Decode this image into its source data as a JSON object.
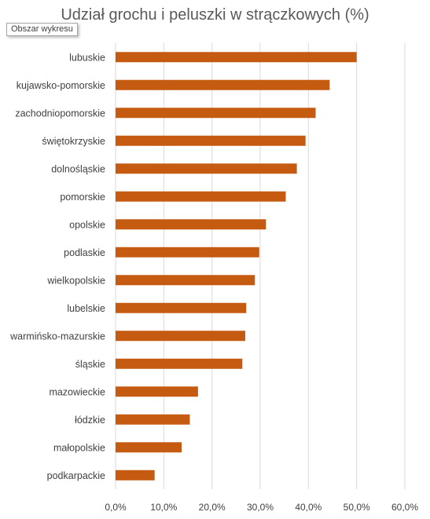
{
  "tooltip": "Obszar wykresu",
  "chart_data": {
    "type": "bar",
    "orientation": "horizontal",
    "title": "Udział grochu i peluszki w strączkowych (%)",
    "xlabel": "",
    "ylabel": "",
    "categories": [
      "lubuskie",
      "kujawsko-pomorskie",
      "zachodniopomorskie",
      "świętokrzyskie",
      "dolnośląskie",
      "pomorskie",
      "opolskie",
      "podlaskie",
      "wielkopolskie",
      "lubelskie",
      "warmińsko-mazurskie",
      "śląskie",
      "mazowieckie",
      "łódzkie",
      "małopolskie",
      "podkarpackie"
    ],
    "values": [
      50.0,
      44.4,
      41.5,
      39.4,
      37.6,
      35.3,
      31.2,
      29.8,
      28.9,
      27.1,
      26.9,
      26.3,
      17.1,
      15.4,
      13.7,
      8.1
    ],
    "xlim": [
      0,
      60
    ],
    "xticks": [
      "0,0%",
      "10,0%",
      "20,0%",
      "30,0%",
      "40,0%",
      "50,0%",
      "60,0%"
    ],
    "grid": "vertical",
    "legend": "none",
    "bar_color": "#c55a11"
  }
}
